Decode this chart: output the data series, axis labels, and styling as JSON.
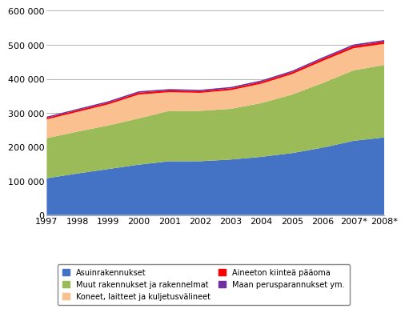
{
  "years": [
    1997,
    1998,
    1999,
    2000,
    2001,
    2002,
    2003,
    2004,
    2005,
    2006,
    2007,
    2008
  ],
  "year_labels": [
    "1997",
    "1998",
    "1999",
    "2000",
    "2001",
    "2002",
    "2003",
    "2004",
    "2005",
    "2006",
    "2007*",
    "2008*"
  ],
  "asuinrakennukset": [
    108000,
    122000,
    135000,
    148000,
    158000,
    158000,
    163000,
    171000,
    182000,
    198000,
    218000,
    228000
  ],
  "muut_rakennukset": [
    118000,
    123000,
    128000,
    136000,
    148000,
    148000,
    149000,
    158000,
    172000,
    190000,
    207000,
    213000
  ],
  "koneet_laitteet": [
    55000,
    58000,
    62000,
    70000,
    55000,
    53000,
    55000,
    57000,
    60000,
    65000,
    65000,
    62000
  ],
  "aineeton": [
    4500,
    5000,
    5200,
    5500,
    5200,
    5000,
    5200,
    5500,
    5800,
    6200,
    6500,
    6500
  ],
  "maan_perusparannukset": [
    3500,
    3700,
    3900,
    4000,
    3800,
    3800,
    3900,
    4000,
    4100,
    4300,
    4500,
    4500
  ],
  "color_asuinrakennukset": "#4472C4",
  "color_muut_rakennukset": "#9BBB59",
  "color_koneet_laitteet": "#FAC090",
  "color_aineeton": "#FF0000",
  "color_maan": "#7030A0",
  "ylim": [
    0,
    600000
  ],
  "yticks": [
    0,
    100000,
    200000,
    300000,
    400000,
    500000,
    600000
  ],
  "legend_labels": [
    "Asuinrakennukset",
    "Muut rakennukset ja rakennelmat",
    "Koneet, laitteet ja kuljetusvälineet",
    "Aineeton kiinteä pääoma",
    "Maan perusparannukset ym."
  ]
}
